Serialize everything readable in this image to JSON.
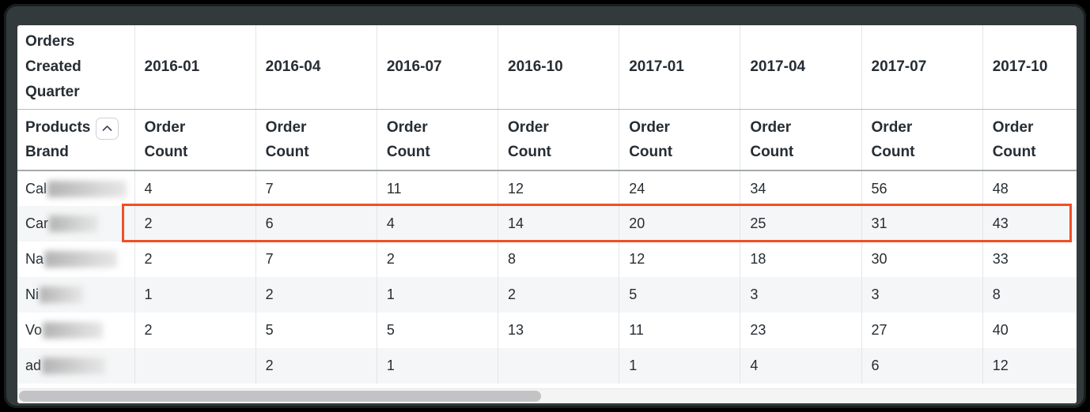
{
  "colors": {
    "highlight_box": "#f04f24",
    "row_stripe": "#f5f6f7",
    "text": "#262d33",
    "frame": "#323a3b"
  },
  "table": {
    "corner_header": "Orders Created Quarter",
    "row_dimension_header": "Products Brand",
    "sort_icon": "chevron-up",
    "measure_label": "Order Count",
    "quarters": [
      "2016-01",
      "2016-04",
      "2016-07",
      "2016-10",
      "2017-01",
      "2017-04",
      "2017-07",
      "2017-10"
    ],
    "rows": [
      {
        "label_prefix": "Cal",
        "redacted": true,
        "redaction_width": 100,
        "highlighted": false,
        "values": [
          "4",
          "7",
          "11",
          "12",
          "24",
          "34",
          "56",
          "48"
        ]
      },
      {
        "label_prefix": "Car",
        "redacted": true,
        "redaction_width": 62,
        "highlighted": true,
        "values": [
          "2",
          "6",
          "4",
          "14",
          "20",
          "25",
          "31",
          "43"
        ]
      },
      {
        "label_prefix": "Na",
        "redacted": true,
        "redaction_width": 92,
        "highlighted": false,
        "values": [
          "2",
          "7",
          "2",
          "8",
          "12",
          "18",
          "30",
          "33"
        ]
      },
      {
        "label_prefix": "Ni",
        "redacted": true,
        "redaction_width": 55,
        "highlighted": false,
        "values": [
          "1",
          "2",
          "1",
          "2",
          "5",
          "3",
          "3",
          "8"
        ]
      },
      {
        "label_prefix": "Vo",
        "redacted": true,
        "redaction_width": 76,
        "highlighted": false,
        "values": [
          "2",
          "5",
          "5",
          "13",
          "11",
          "23",
          "27",
          "40"
        ]
      },
      {
        "label_prefix": "ad",
        "redacted": true,
        "redaction_width": 80,
        "highlighted": false,
        "values": [
          "",
          "2",
          "1",
          "",
          "1",
          "4",
          "6",
          "12"
        ]
      }
    ]
  }
}
